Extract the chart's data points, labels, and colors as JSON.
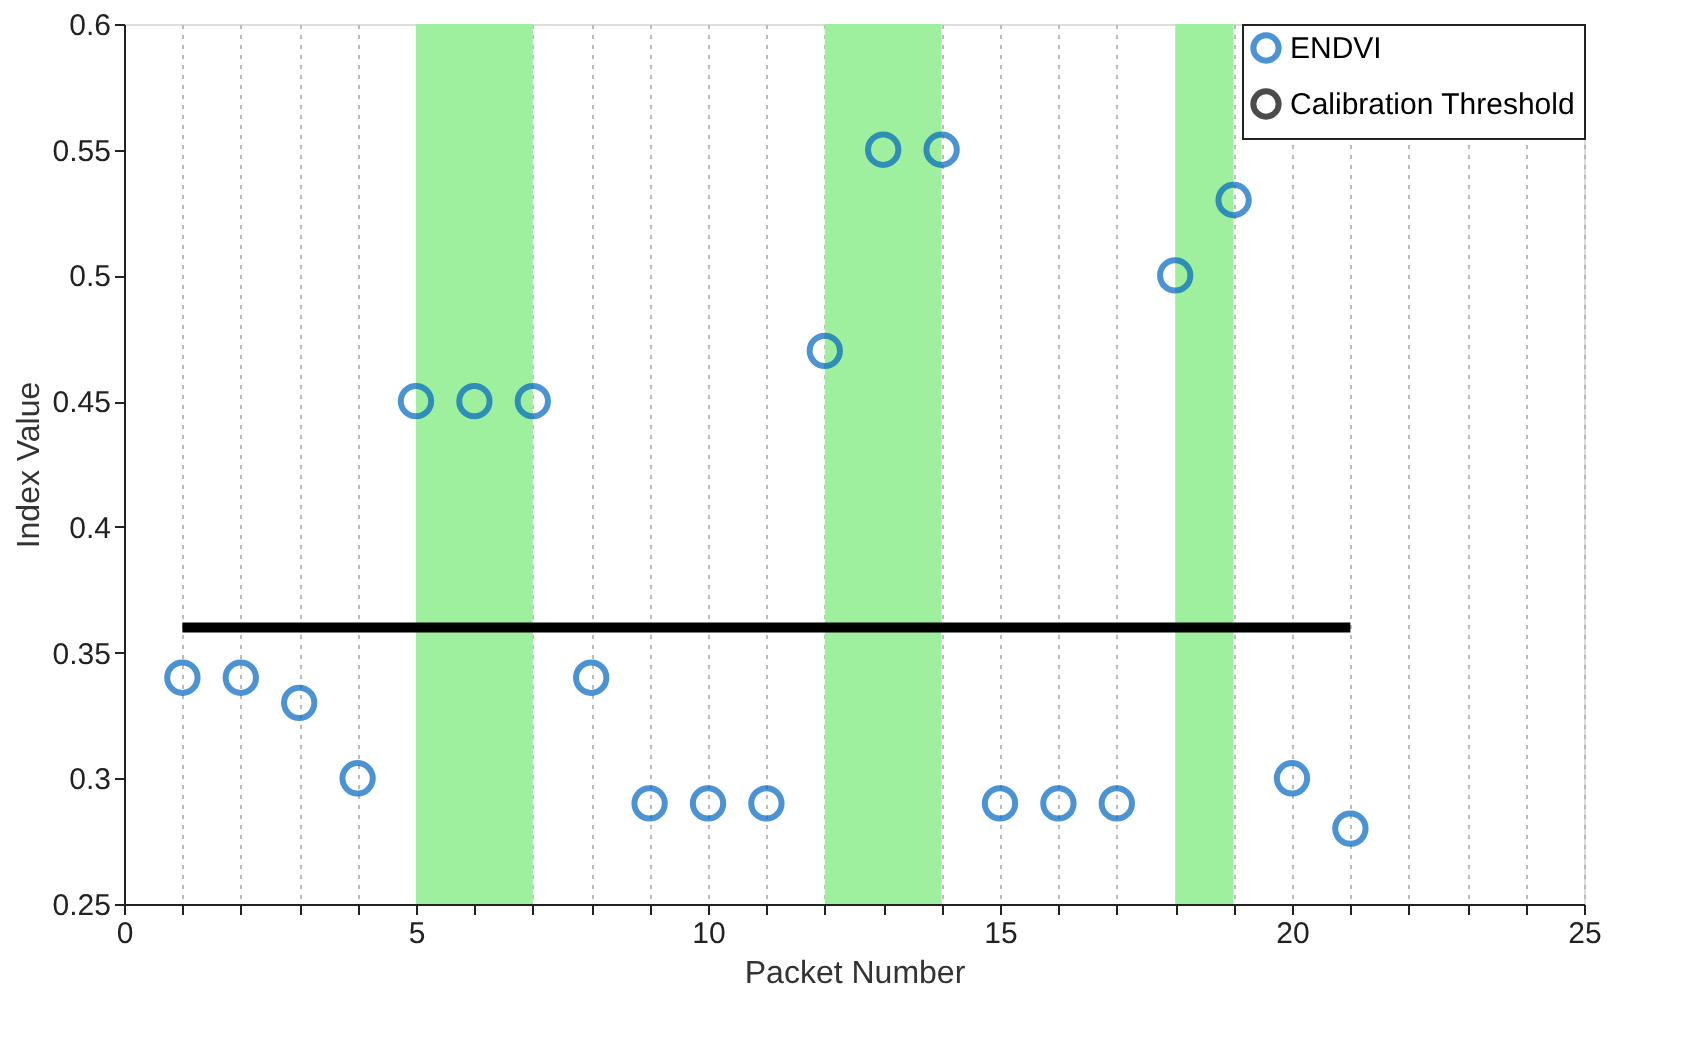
{
  "chart_data": {
    "type": "scatter",
    "xlabel": "Packet Number",
    "ylabel": "Index Value",
    "x": [
      1,
      2,
      3,
      4,
      5,
      6,
      7,
      8,
      9,
      10,
      11,
      12,
      13,
      14,
      15,
      16,
      17,
      18,
      19,
      20,
      21
    ],
    "series": [
      {
        "name": "ENDVI",
        "type": "scatter",
        "color": "#0066c0",
        "marker": "circle",
        "values": [
          0.34,
          0.34,
          0.33,
          0.3,
          0.45,
          0.45,
          0.45,
          0.34,
          0.29,
          0.29,
          0.29,
          0.47,
          0.55,
          0.55,
          0.29,
          0.29,
          0.29,
          0.5,
          0.53,
          0.3,
          0.28
        ]
      },
      {
        "name": "Calibration Threshold",
        "type": "line",
        "color": "#000000",
        "line_style": "solid",
        "x": [
          1,
          21
        ],
        "values": [
          0.36,
          0.36
        ]
      }
    ],
    "bands": [
      {
        "axis": "x",
        "from": 5,
        "to": 7,
        "color": "#9ef09e"
      },
      {
        "axis": "x",
        "from": 12,
        "to": 14,
        "color": "#9ef09e"
      },
      {
        "axis": "x",
        "from": 18,
        "to": 19,
        "color": "#9ef09e"
      }
    ],
    "xlim": [
      0,
      25
    ],
    "xticks": [
      0,
      {
        "value": 1,
        "label": null
      },
      {
        "value": 2,
        "label": null
      },
      {
        "value": 3,
        "label": null
      },
      {
        "value": 4,
        "label": null
      },
      5,
      {
        "value": 6,
        "label": null
      },
      {
        "value": 7,
        "label": null
      },
      {
        "value": 8,
        "label": null
      },
      {
        "value": 9,
        "label": null
      },
      10,
      {
        "value": 11,
        "label": null
      },
      {
        "value": 12,
        "label": null
      },
      {
        "value": 13,
        "label": null
      },
      {
        "value": 14,
        "label": null
      },
      15,
      {
        "value": 16,
        "label": null
      },
      {
        "value": 17,
        "label": null
      },
      {
        "value": 18,
        "label": null
      },
      {
        "value": 19,
        "label": null
      },
      20,
      {
        "value": 21,
        "label": null
      },
      {
        "value": 22,
        "label": null
      },
      {
        "value": 23,
        "label": null
      },
      {
        "value": 24,
        "label": null
      },
      25
    ],
    "ylim": [
      0.25,
      0.6
    ],
    "yticks": [
      0.25,
      0.3,
      0.35,
      0.4,
      0.45,
      0.5,
      0.55,
      0.6
    ],
    "grid": "x",
    "legend": "top right"
  }
}
